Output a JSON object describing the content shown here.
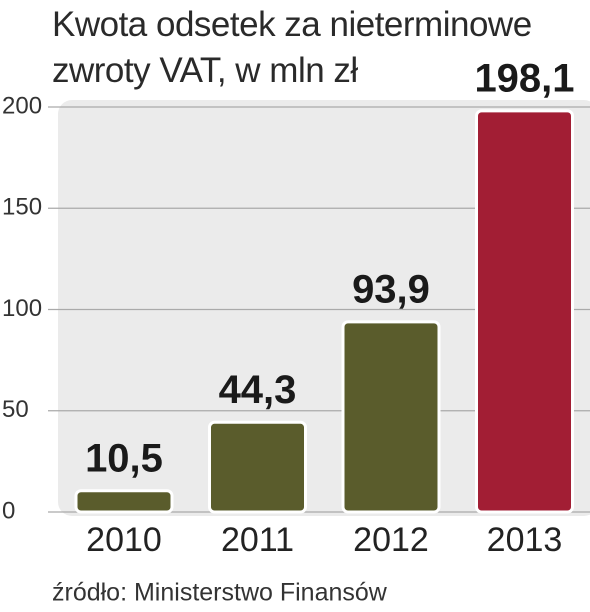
{
  "chart_data": {
    "type": "bar",
    "title": "Kwota odsetek za nieterminowe zwroty VAT, w mln zł",
    "source": "źródło: Ministerstwo Finansów",
    "categories": [
      "2010",
      "2011",
      "2012",
      "2013"
    ],
    "values": [
      10.5,
      44.3,
      93.9,
      198.1
    ],
    "value_labels": [
      "10,5",
      "44,3",
      "93,9",
      "198,1"
    ],
    "colors": [
      "#5a5c2c",
      "#5a5c2c",
      "#5a5c2c",
      "#a21e34"
    ],
    "ylim": [
      0,
      200
    ],
    "yticks": [
      0,
      50,
      100,
      150,
      200
    ],
    "grid": true
  }
}
